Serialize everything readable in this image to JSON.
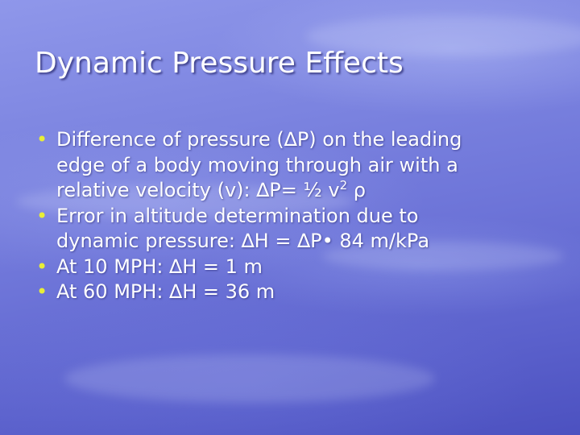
{
  "slide": {
    "title": "Dynamic Pressure Effects",
    "bullet_glyph": "•",
    "accent_color": "#e8ee37",
    "background_color": "#6d74d8",
    "bullets": [
      {
        "lines": [
          "Difference of pressure (∆P) on the leading",
          "edge of a body moving through air with a",
          "relative velocity (v):  ∆P= ½ v"
        ],
        "superscript": "2",
        "after_superscript": " ρ"
      },
      {
        "lines": [
          "Error in altitude determination due to",
          "dynamic pressure: ∆H = ∆P• 84 m/kPa"
        ]
      },
      {
        "lines": [
          "At 10 MPH: ∆H = 1 m"
        ]
      },
      {
        "lines": [
          "At 60 MPH: ∆H = 36 m"
        ]
      }
    ]
  }
}
